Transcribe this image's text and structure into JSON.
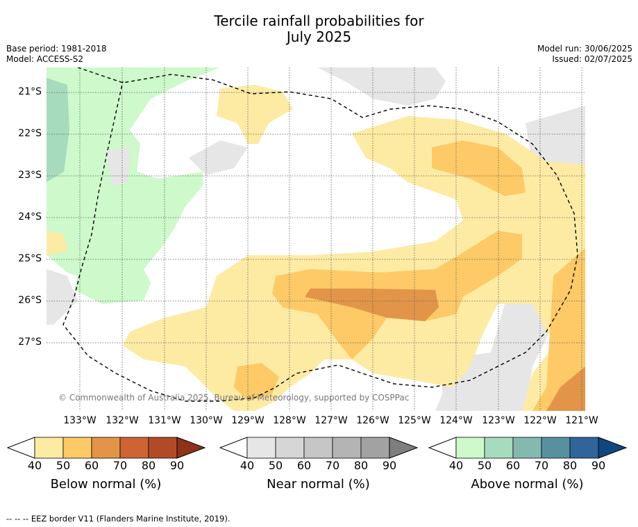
{
  "title": {
    "line1": "Tercile rainfall probabilities for",
    "line2": "July 2025"
  },
  "meta": {
    "base_period": "Base period: 1981-2018",
    "model": "Model: ACCESS-S2",
    "model_run": "Model run: 30/06/2025",
    "issued": "Issued: 02/07/2025"
  },
  "map": {
    "lat_labels": [
      "21°S",
      "22°S",
      "23°S",
      "24°S",
      "25°S",
      "26°S",
      "27°S"
    ],
    "lon_labels": [
      "133°W",
      "132°W",
      "131°W",
      "130°W",
      "129°W",
      "128°W",
      "127°W",
      "126°W",
      "125°W",
      "124°W",
      "123°W",
      "122°W",
      "121°W"
    ],
    "copyright": "© Commonwealth of Australia 2025, Bureau of Meteorology, supported by COSPPac",
    "border_style": "dashed"
  },
  "colorbars": [
    {
      "title": "Below normal (%)",
      "ticks": [
        "40",
        "50",
        "60",
        "70",
        "80",
        "90"
      ],
      "colors": [
        "#fdeba4",
        "#fdca67",
        "#e29548",
        "#cd6434",
        "#b24a28",
        "#8e3218"
      ]
    },
    {
      "title": "Near normal (%)",
      "ticks": [
        "40",
        "50",
        "60",
        "70",
        "80",
        "90"
      ],
      "colors": [
        "#e6e6e6",
        "#d6d6d6",
        "#c6c6c6",
        "#b4b4b4",
        "#a2a2a2",
        "#7e7e7e"
      ]
    },
    {
      "title": "Above normal (%)",
      "ticks": [
        "40",
        "50",
        "60",
        "70",
        "80",
        "90"
      ],
      "colors": [
        "#cdf9cb",
        "#a7dbbd",
        "#84b9b0",
        "#58909e",
        "#2f6599",
        "#10477f"
      ]
    }
  ],
  "footnote": "-- -- -- EEZ border V11 (Flanders Marine Institute, 2019)."
}
